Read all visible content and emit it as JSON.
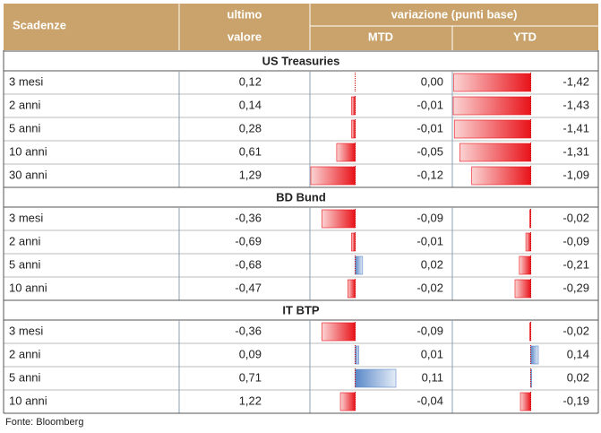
{
  "header": {
    "maturity": "Scadenze",
    "last": [
      "ultimo",
      "valore"
    ],
    "change": "variazione (punti base)",
    "mtd": "MTD",
    "ytd": "YTD"
  },
  "sections": [
    {
      "title": "US Treasuries",
      "rows": [
        {
          "maturity": "3 mesi",
          "last": "0,12",
          "mtd": 0.0,
          "mtd_label": "0,00",
          "ytd": -1.42,
          "ytd_label": "-1,42"
        },
        {
          "maturity": "2 anni",
          "last": "0,14",
          "mtd": -0.01,
          "mtd_label": "-0,01",
          "ytd": -1.43,
          "ytd_label": "-1,43"
        },
        {
          "maturity": "5 anni",
          "last": "0,28",
          "mtd": -0.01,
          "mtd_label": "-0,01",
          "ytd": -1.41,
          "ytd_label": "-1,41"
        },
        {
          "maturity": "10 anni",
          "last": "0,61",
          "mtd": -0.05,
          "mtd_label": "-0,05",
          "ytd": -1.31,
          "ytd_label": "-1,31"
        },
        {
          "maturity": "30 anni",
          "last": "1,29",
          "mtd": -0.12,
          "mtd_label": "-0,12",
          "ytd": -1.09,
          "ytd_label": "-1,09"
        }
      ]
    },
    {
      "title": "BD Bund",
      "rows": [
        {
          "maturity": "3 mesi",
          "last": "-0,36",
          "mtd": -0.09,
          "mtd_label": "-0,09",
          "ytd": -0.02,
          "ytd_label": "-0,02"
        },
        {
          "maturity": "2 anni",
          "last": "-0,69",
          "mtd": -0.01,
          "mtd_label": "-0,01",
          "ytd": -0.09,
          "ytd_label": "-0,09"
        },
        {
          "maturity": "5 anni",
          "last": "-0,68",
          "mtd": 0.02,
          "mtd_label": "0,02",
          "ytd": -0.21,
          "ytd_label": "-0,21"
        },
        {
          "maturity": "10 anni",
          "last": "-0,47",
          "mtd": -0.02,
          "mtd_label": "-0,02",
          "ytd": -0.29,
          "ytd_label": "-0,29"
        }
      ]
    },
    {
      "title": "IT BTP",
      "rows": [
        {
          "maturity": "3 mesi",
          "last": "-0,36",
          "mtd": -0.09,
          "mtd_label": "-0,09",
          "ytd": -0.02,
          "ytd_label": "-0,02"
        },
        {
          "maturity": "2 anni",
          "last": "0,09",
          "mtd": 0.01,
          "mtd_label": "0,01",
          "ytd": 0.14,
          "ytd_label": "0,14"
        },
        {
          "maturity": "5 anni",
          "last": "0,71",
          "mtd": 0.11,
          "mtd_label": "0,11",
          "ytd": 0.02,
          "ytd_label": "0,02"
        },
        {
          "maturity": "10 anni",
          "last": "1,22",
          "mtd": -0.04,
          "mtd_label": "-0,04",
          "ytd": -0.19,
          "ytd_label": "-0,19"
        }
      ]
    }
  ],
  "source": "Fonte: Bloomberg"
}
